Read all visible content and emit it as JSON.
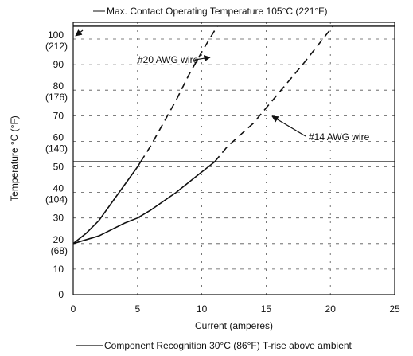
{
  "chart_data": {
    "type": "line",
    "title": "Max. Contact Operating Temperature 105°C (221°F)",
    "xlabel": "Current (amperes)",
    "ylabel": "Temperature °C (°F)",
    "xlim": [
      0,
      25
    ],
    "ylim": [
      0,
      110
    ],
    "x_ticks": [
      "0",
      "5",
      "10",
      "15",
      "20",
      "25"
    ],
    "y_ticks": [
      {
        "c": "0",
        "f": ""
      },
      {
        "c": "10",
        "f": ""
      },
      {
        "c": "20",
        "f": "(68)"
      },
      {
        "c": "30",
        "f": ""
      },
      {
        "c": "40",
        "f": "(104)"
      },
      {
        "c": "50",
        "f": ""
      },
      {
        "c": "60",
        "f": "(140)"
      },
      {
        "c": "70",
        "f": ""
      },
      {
        "c": "80",
        "f": "(176)"
      },
      {
        "c": "90",
        "f": ""
      },
      {
        "c": "100",
        "f": "(212)"
      }
    ],
    "grid": true,
    "reference_lines": [
      {
        "y": 105,
        "label": "Max. Contact Operating Temperature 105°C (221°F)"
      },
      {
        "y": 52,
        "label": "Component Recognition 30°C (86°F) T-rise above ambient"
      }
    ],
    "series": [
      {
        "name": "#20 AWG wire",
        "x": [
          0,
          1,
          2,
          3,
          4,
          5,
          6,
          7,
          8,
          9,
          10,
          11.2
        ],
        "y": [
          20,
          24,
          29,
          36,
          43,
          50,
          58,
          67,
          76,
          86,
          95,
          105
        ]
      },
      {
        "name": "#14 AWG wire",
        "x": [
          0,
          2,
          4,
          5,
          6,
          8,
          10,
          11,
          12,
          14,
          16,
          18,
          20.2
        ],
        "y": [
          20,
          23,
          28,
          30,
          33,
          40,
          48,
          52,
          58,
          67,
          79,
          91,
          105
        ]
      }
    ],
    "annotations": {
      "awg20_label": "#20 AWG wire",
      "awg14_label": "#14 AWG wire",
      "legend_text": "Component Recognition 30°C (86°F) T-rise above ambient"
    }
  }
}
